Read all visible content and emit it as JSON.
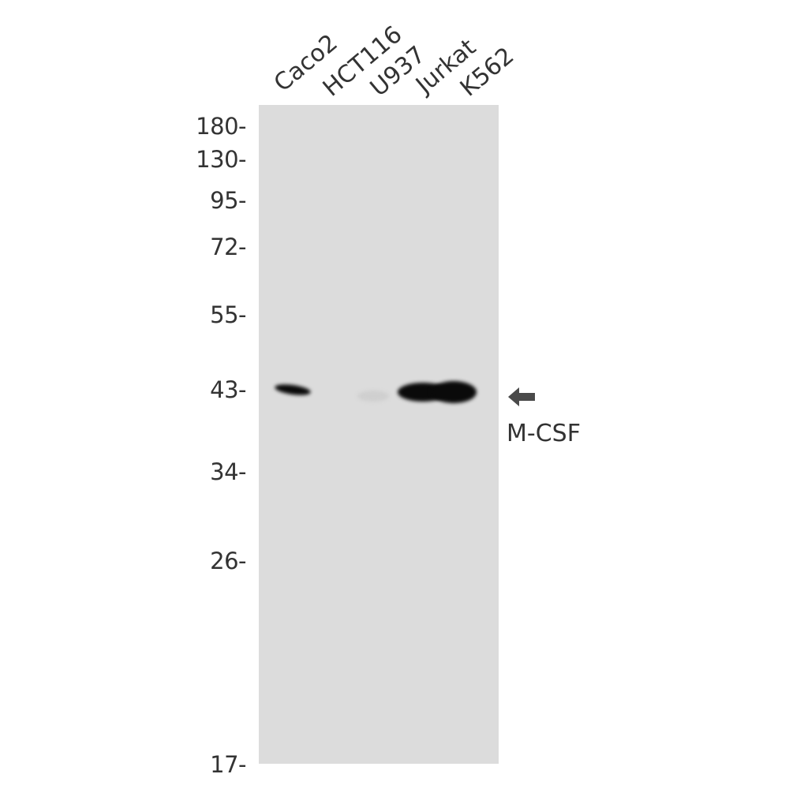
{
  "lanes": [
    "Caco2",
    "HCT116",
    "U937",
    "Jurkat",
    "K562"
  ],
  "markers": [
    "180-",
    "130-",
    "95-",
    "72-",
    "55-",
    "43-",
    "34-",
    "26-",
    "17-"
  ],
  "target": {
    "label": "M-CSF",
    "icon": "arrow-left-icon",
    "color": "#4a4a4a"
  },
  "colors": {
    "membrane": "#dcdcdc",
    "band": "#0a0a0a"
  }
}
